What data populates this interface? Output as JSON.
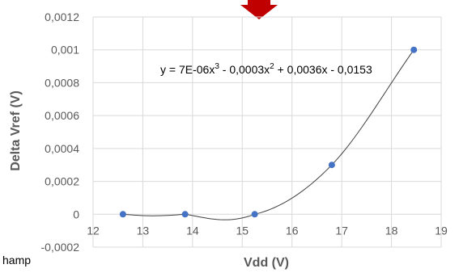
{
  "fragment_text": "hamp",
  "chart_data": {
    "type": "scatter",
    "x": [
      12.6,
      13.85,
      15.25,
      16.8,
      18.45
    ],
    "y": [
      0,
      0,
      0,
      0.0003,
      0.001
    ],
    "xlabel": "Vdd (V)",
    "ylabel": "Delta Vref (V)",
    "xlim": [
      12,
      19
    ],
    "ylim": [
      -0.0002,
      0.0012
    ],
    "xticks": [
      "12",
      "13",
      "14",
      "15",
      "16",
      "17",
      "18",
      "19"
    ],
    "yticks": [
      "-0,0002",
      "0",
      "0,0002",
      "0,0004",
      "0,0006",
      "0,0008",
      "0,001",
      "0,0012"
    ],
    "trendline": {
      "type": "polynomial",
      "coefficients": [
        7e-06,
        -0.0003,
        0.0036,
        -0.0153
      ],
      "equation": {
        "y_eq": "y = 7E-06x",
        "p1": "3",
        "m1": " - 0,0003x",
        "p2": "2",
        "m2": " + 0,0036x - 0,0153"
      }
    },
    "grid": true,
    "marker_color": "#4472c4",
    "grid_color": "#d9d9d9",
    "arrow_color": "#c00000"
  }
}
